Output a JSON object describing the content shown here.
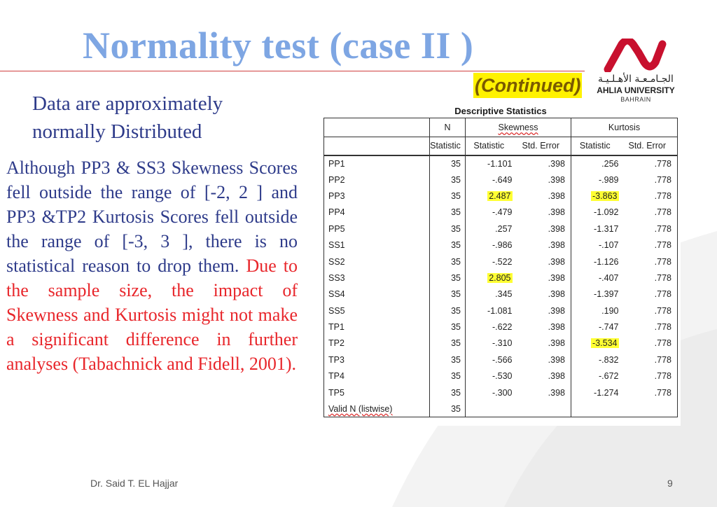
{
  "slide": {
    "title": "Normality test (case II )",
    "subtitle": "(Continued)",
    "intro_line1": "Data are approximately",
    "intro_line2": "normally Distributed",
    "body_part1": "Although PP3 & SS3 Skewness Scores fell outside the range of [-2, 2 ] and PP3 &TP2 Kurtosis Scores fell outside the range of [-3, 3 ], there is no statistical reason to drop them.",
    "body_part2": "Due to the sample size, the impact of Skewness and Kurtosis might not make a significant difference in further analyses (Tabachnick and Fidell, 2001).",
    "footer_author": "Dr. Said T. EL Hajjar",
    "page_number": "9"
  },
  "logo": {
    "arabic_name": "الجـامـعـة الأهـلـيـة",
    "english_name": "AHLIA UNIVERSITY",
    "country": "BAHRAIN",
    "brand_color": "#c8102e"
  },
  "colors": {
    "title": "#7ea6e3",
    "body_text": "#2e3b8a",
    "body_highlight": "#e8262b",
    "cell_highlight": "#ffff33"
  },
  "table": {
    "title": "Descriptive Statistics",
    "headers": {
      "n": "N",
      "skewness": "Skewness",
      "kurtosis": "Kurtosis",
      "statistic": "Statistic",
      "std_error": "Std. Error"
    },
    "rows": [
      {
        "label": "PP1",
        "n": "35",
        "skew_stat": "-1.101",
        "skew_se": ".398",
        "kurt_stat": ".256",
        "kurt_se": ".778"
      },
      {
        "label": "PP2",
        "n": "35",
        "skew_stat": "-.649",
        "skew_se": ".398",
        "kurt_stat": "-.989",
        "kurt_se": ".778"
      },
      {
        "label": "PP3",
        "n": "35",
        "skew_stat": "2.487",
        "skew_se": ".398",
        "kurt_stat": "-3.863",
        "kurt_se": ".778"
      },
      {
        "label": "PP4",
        "n": "35",
        "skew_stat": "-.479",
        "skew_se": ".398",
        "kurt_stat": "-1.092",
        "kurt_se": ".778"
      },
      {
        "label": "PP5",
        "n": "35",
        "skew_stat": ".257",
        "skew_se": ".398",
        "kurt_stat": "-1.317",
        "kurt_se": ".778"
      },
      {
        "label": "SS1",
        "n": "35",
        "skew_stat": "-.986",
        "skew_se": ".398",
        "kurt_stat": "-.107",
        "kurt_se": ".778"
      },
      {
        "label": "SS2",
        "n": "35",
        "skew_stat": "-.522",
        "skew_se": ".398",
        "kurt_stat": "-1.126",
        "kurt_se": ".778"
      },
      {
        "label": "SS3",
        "n": "35",
        "skew_stat": "2.805",
        "skew_se": ".398",
        "kurt_stat": "-.407",
        "kurt_se": ".778"
      },
      {
        "label": "SS4",
        "n": "35",
        "skew_stat": ".345",
        "skew_se": ".398",
        "kurt_stat": "-1.397",
        "kurt_se": ".778"
      },
      {
        "label": "SS5",
        "n": "35",
        "skew_stat": "-1.081",
        "skew_se": ".398",
        "kurt_stat": ".190",
        "kurt_se": ".778"
      },
      {
        "label": "TP1",
        "n": "35",
        "skew_stat": "-.622",
        "skew_se": ".398",
        "kurt_stat": "-.747",
        "kurt_se": ".778"
      },
      {
        "label": "TP2",
        "n": "35",
        "skew_stat": "-.310",
        "skew_se": ".398",
        "kurt_stat": "-3.534",
        "kurt_se": ".778"
      },
      {
        "label": "TP3",
        "n": "35",
        "skew_stat": "-.566",
        "skew_se": ".398",
        "kurt_stat": "-.832",
        "kurt_se": ".778"
      },
      {
        "label": "TP4",
        "n": "35",
        "skew_stat": "-.530",
        "skew_se": ".398",
        "kurt_stat": "-.672",
        "kurt_se": ".778"
      },
      {
        "label": "TP5",
        "n": "35",
        "skew_stat": "-.300",
        "skew_se": ".398",
        "kurt_stat": "-1.274",
        "kurt_se": ".778"
      }
    ],
    "valid_n_label": "Valid N (listwise)",
    "valid_n": "35",
    "highlighted_cells": [
      "2.487",
      "-3.863",
      "2.805",
      "-3.534"
    ]
  }
}
